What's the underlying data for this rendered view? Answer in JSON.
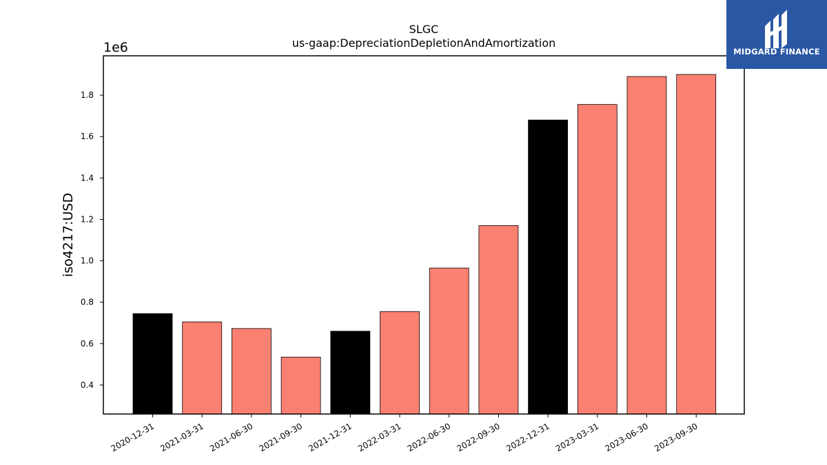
{
  "chart_data": {
    "type": "bar",
    "title": "SLGC",
    "subtitle": "us-gaap:DepreciationDepletionAndAmortization",
    "xlabel": "",
    "ylabel": "iso4217:USD",
    "y_offset_label": "1e6",
    "ylim": [
      0.26,
      1.99
    ],
    "y_ticks": [
      0.4,
      0.6,
      0.8,
      1.0,
      1.2,
      1.4,
      1.6,
      1.8
    ],
    "y_tick_labels": [
      "0.4",
      "0.6",
      "0.8",
      "1.0",
      "1.2",
      "1.4",
      "1.6",
      "1.8"
    ],
    "grid": false,
    "categories": [
      "2020-12-31",
      "2021-03-31",
      "2021-06-30",
      "2021-09-30",
      "2021-12-31",
      "2022-03-31",
      "2022-06-30",
      "2022-09-30",
      "2022-12-31",
      "2023-03-31",
      "2023-06-30",
      "2023-09-30"
    ],
    "values": [
      0.745,
      0.705,
      0.673,
      0.535,
      0.66,
      0.755,
      0.965,
      1.17,
      1.68,
      1.755,
      1.89,
      1.9
    ],
    "bar_colors": [
      "#000000",
      "#fa8072",
      "#fa8072",
      "#fa8072",
      "#000000",
      "#fa8072",
      "#fa8072",
      "#fa8072",
      "#000000",
      "#fa8072",
      "#fa8072",
      "#fa8072"
    ]
  },
  "logo": {
    "text": "MIDGARD FINANCE",
    "background": "#2957a4"
  }
}
